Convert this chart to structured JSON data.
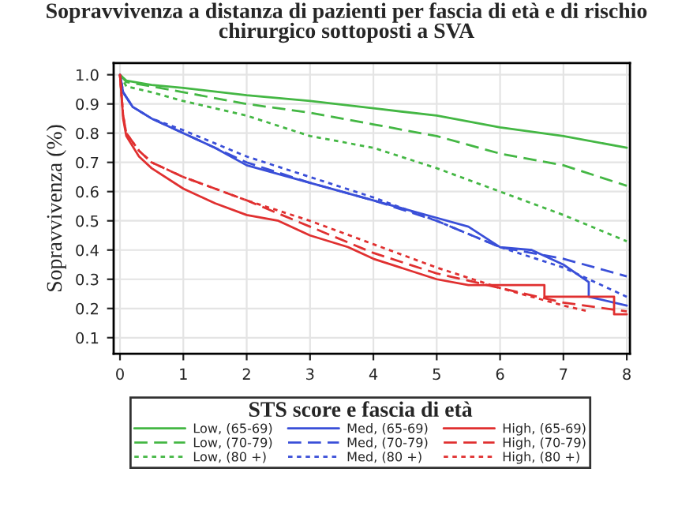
{
  "chart_data": {
    "type": "line",
    "title": "Sopravvivenza a distanza di pazienti per fascia di età e di rischio\nchirurgico sottoposti a SVA",
    "ylabel": "Sopravvivenza (%)",
    "legend_title": "STS score e fascia di età",
    "legend": "bottom",
    "grid": true,
    "xlim": [
      -0.1,
      8.05
    ],
    "ylim": [
      0.045,
      1.04
    ],
    "xticks": [
      0,
      1,
      2,
      3,
      4,
      5,
      6,
      7,
      8
    ],
    "yticks": [
      0.1,
      0.2,
      0.3,
      0.4,
      0.5,
      0.6,
      0.7,
      0.8,
      0.9,
      {
        "value": 1.0,
        "label": "1.0"
      }
    ],
    "series": [
      {
        "name": "Low, (65-69)",
        "color": "#44b744",
        "line_style": "solid",
        "x": [
          0,
          0.1,
          0.5,
          1,
          2,
          3,
          4,
          5,
          6,
          7,
          8
        ],
        "values": [
          1.0,
          0.98,
          0.965,
          0.955,
          0.93,
          0.91,
          0.885,
          0.86,
          0.82,
          0.79,
          0.75
        ]
      },
      {
        "name": "Low, (70-79)",
        "color": "#44b744",
        "line_style": "dashed",
        "x": [
          0,
          0.1,
          0.5,
          1,
          2,
          3,
          4,
          5,
          6,
          7,
          8
        ],
        "values": [
          1.0,
          0.975,
          0.96,
          0.94,
          0.9,
          0.87,
          0.83,
          0.79,
          0.73,
          0.69,
          0.62
        ]
      },
      {
        "name": "Low, (80 +)",
        "color": "#44b744",
        "line_style": "dotted",
        "x": [
          0,
          0.1,
          0.5,
          1,
          2,
          3,
          4,
          5,
          6,
          7,
          8
        ],
        "values": [
          1.0,
          0.96,
          0.94,
          0.91,
          0.86,
          0.79,
          0.75,
          0.68,
          0.6,
          0.52,
          0.43
        ]
      },
      {
        "name": "Med, (65-69)",
        "color": "#3a4fd8",
        "line_style": "solid",
        "x": [
          0,
          0.05,
          0.2,
          0.5,
          1,
          1.5,
          2,
          3,
          4,
          5,
          5.5,
          6,
          6.5,
          7,
          7.4,
          7.4,
          8
        ],
        "values": [
          1.0,
          0.94,
          0.89,
          0.85,
          0.8,
          0.75,
          0.69,
          0.63,
          0.57,
          0.51,
          0.48,
          0.41,
          0.4,
          0.35,
          0.29,
          0.24,
          0.21
        ]
      },
      {
        "name": "Med, (70-79)",
        "color": "#3a4fd8",
        "line_style": "dashed",
        "x": [
          0,
          0.05,
          0.2,
          0.5,
          1,
          2,
          3,
          4,
          5,
          6,
          7,
          8
        ],
        "values": [
          1.0,
          0.94,
          0.89,
          0.85,
          0.8,
          0.7,
          0.63,
          0.57,
          0.5,
          0.41,
          0.37,
          0.31
        ]
      },
      {
        "name": "Med, (80 +)",
        "color": "#3a4fd8",
        "line_style": "dotted",
        "x": [
          0,
          0.05,
          0.2,
          0.5,
          1,
          2,
          3,
          4,
          5,
          6,
          7,
          8
        ],
        "values": [
          1.0,
          0.94,
          0.89,
          0.85,
          0.81,
          0.72,
          0.65,
          0.58,
          0.5,
          0.41,
          0.34,
          0.24
        ]
      },
      {
        "name": "High, (65-69)",
        "color": "#e03030",
        "line_style": "solid",
        "x": [
          0,
          0.05,
          0.1,
          0.3,
          0.5,
          1,
          1.5,
          2,
          2.5,
          3,
          3.6,
          4,
          5,
          5.5,
          6.7,
          6.7,
          7.8,
          7.8,
          8
        ],
        "values": [
          1.0,
          0.85,
          0.79,
          0.72,
          0.68,
          0.61,
          0.56,
          0.52,
          0.5,
          0.45,
          0.41,
          0.37,
          0.3,
          0.28,
          0.28,
          0.24,
          0.24,
          0.18,
          0.18
        ]
      },
      {
        "name": "High, (70-79)",
        "color": "#e03030",
        "line_style": "dashed",
        "x": [
          0,
          0.05,
          0.1,
          0.3,
          0.5,
          1,
          2,
          3,
          4,
          5,
          6,
          7,
          8
        ],
        "values": [
          1.0,
          0.86,
          0.8,
          0.74,
          0.7,
          0.65,
          0.57,
          0.48,
          0.39,
          0.32,
          0.27,
          0.22,
          0.19
        ]
      },
      {
        "name": "High, (80 +)",
        "color": "#e03030",
        "line_style": "dotted",
        "x": [
          0,
          0.05,
          0.1,
          0.3,
          0.5,
          1,
          2,
          3,
          4,
          5,
          6,
          7,
          7.4
        ],
        "values": [
          1.0,
          0.86,
          0.8,
          0.74,
          0.7,
          0.65,
          0.57,
          0.5,
          0.42,
          0.34,
          0.27,
          0.21,
          0.19
        ]
      }
    ]
  }
}
